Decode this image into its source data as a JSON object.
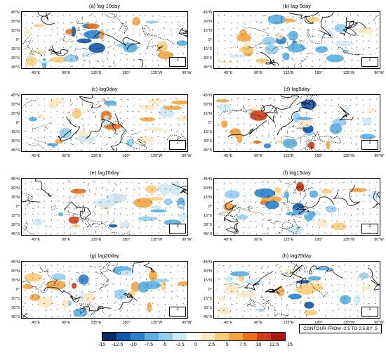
{
  "panels": [
    {
      "title": "(a) lag-10day"
    },
    {
      "title": "(b) lag-5day"
    },
    {
      "title": "(c) lag0day"
    },
    {
      "title": "(d) lag5day"
    },
    {
      "title": "(e) lag10day"
    },
    {
      "title": "(f) lag15day"
    },
    {
      "title": "(g) lag20day"
    },
    {
      "title": "(h) lag25day"
    }
  ],
  "y_ticks": [
    "45°N",
    "30°N",
    "15°N",
    "0°",
    "15°S",
    "30°S",
    "45°S"
  ],
  "x_ticks": [
    "45°E",
    "90°E",
    "135°E",
    "180°",
    "135°W",
    "90°W"
  ],
  "reference_vector": "2",
  "colorbar": {
    "labels": [
      "-15",
      "-12.5",
      "-10",
      "-7.5",
      "-5",
      "-2.5",
      "0",
      "2.5",
      "5",
      "7.5",
      "10",
      "12.5",
      "15"
    ],
    "colors": [
      "#0a2a6a",
      "#1457a8",
      "#2a82cc",
      "#5aaee0",
      "#95cdee",
      "#cfe8f6",
      "#ffffff",
      "#fce8c4",
      "#f8cd7a",
      "#f3a445",
      "#e8701e",
      "#cf3c17",
      "#a81a10"
    ]
  },
  "contour_note": "CONTOUR FROM -2.5 TO 2.5 BY .5"
}
